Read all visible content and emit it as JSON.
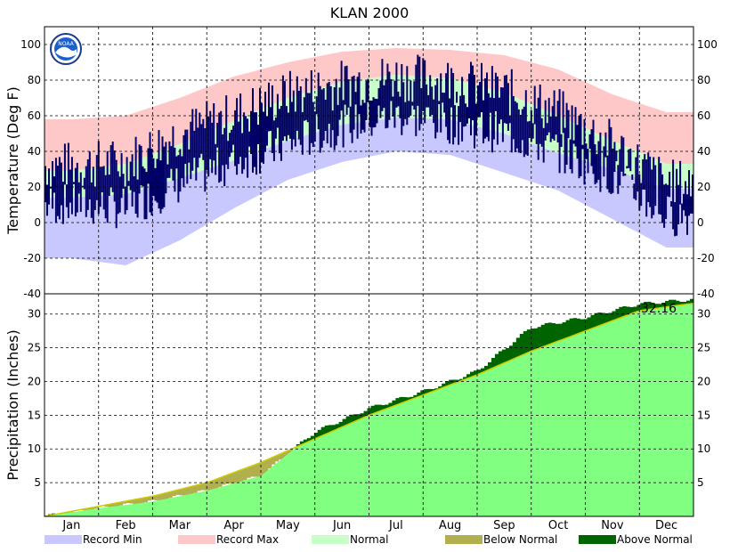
{
  "chart_data": [
    {
      "type": "area",
      "panel": "temperature",
      "title": "KLAN 2000",
      "ylabel": "Temperature (Deg F)",
      "ylim": [
        -40,
        110
      ],
      "yticks": [
        -40,
        -20,
        0,
        20,
        40,
        60,
        80,
        100
      ],
      "grid": true,
      "months": [
        "Jan",
        "Feb",
        "Mar",
        "Apr",
        "May",
        "Jun",
        "Jul",
        "Aug",
        "Sep",
        "Oct",
        "Nov",
        "Dec"
      ],
      "series": [
        {
          "name": "Record Max",
          "color": "#ffc8c8",
          "values": [
            58,
            60,
            70,
            82,
            90,
            96,
            98,
            97,
            94,
            86,
            72,
            62
          ]
        },
        {
          "name": "Normal",
          "color": "#c8ffc8",
          "values_high": [
            29,
            33,
            44,
            57,
            70,
            79,
            83,
            81,
            73,
            60,
            46,
            33
          ],
          "values_low": [
            14,
            16,
            25,
            35,
            46,
            55,
            59,
            58,
            50,
            39,
            30,
            19
          ]
        },
        {
          "name": "Record Min",
          "color": "#c8c8ff",
          "values": [
            -20,
            -24,
            -10,
            8,
            24,
            34,
            40,
            38,
            28,
            18,
            2,
            -14
          ]
        },
        {
          "name": "Observed",
          "color": "#000066",
          "values_high": [
            32,
            34,
            50,
            60,
            72,
            78,
            82,
            80,
            74,
            62,
            44,
            22
          ],
          "values_low": [
            10,
            8,
            22,
            34,
            44,
            54,
            60,
            56,
            50,
            40,
            26,
            4
          ]
        }
      ]
    },
    {
      "type": "area",
      "panel": "precipitation",
      "ylabel": "Precipitation (Inches)",
      "ylim": [
        0,
        33
      ],
      "yticks": [
        5,
        10,
        15,
        20,
        25,
        30
      ],
      "grid": true,
      "annotation": "32.16",
      "months": [
        "Jan",
        "Feb",
        "Mar",
        "Apr",
        "May",
        "Jun",
        "Jul",
        "Aug",
        "Sep",
        "Oct",
        "Nov",
        "Dec"
      ],
      "normal_cumulative": [
        0,
        1.5,
        3.0,
        5.0,
        8.0,
        11.5,
        15.0,
        18.0,
        21.0,
        24.5,
        27.5,
        30.5,
        31.6
      ],
      "observed_cumulative": [
        0,
        1.2,
        2.2,
        3.8,
        6.0,
        12.5,
        16.0,
        18.5,
        21.5,
        28.0,
        29.5,
        31.5,
        32.16
      ],
      "series": [
        {
          "name": "Below Normal",
          "color": "#b2b04e"
        },
        {
          "name": "Above Normal",
          "color": "#006400"
        }
      ]
    }
  ],
  "legend": [
    {
      "label": "Record Min",
      "color": "#c8c8ff"
    },
    {
      "label": "Record Max",
      "color": "#ffc8c8"
    },
    {
      "label": "Normal",
      "color": "#c8ffc8"
    },
    {
      "label": "Below Normal",
      "color": "#b2b04e"
    },
    {
      "label": "Above Normal",
      "color": "#006400"
    }
  ],
  "logo": {
    "text": "NOAA",
    "icon": "noaa-logo-icon"
  },
  "colors": {
    "precip_fill": "#80ff80",
    "observed_line": "#000066"
  }
}
